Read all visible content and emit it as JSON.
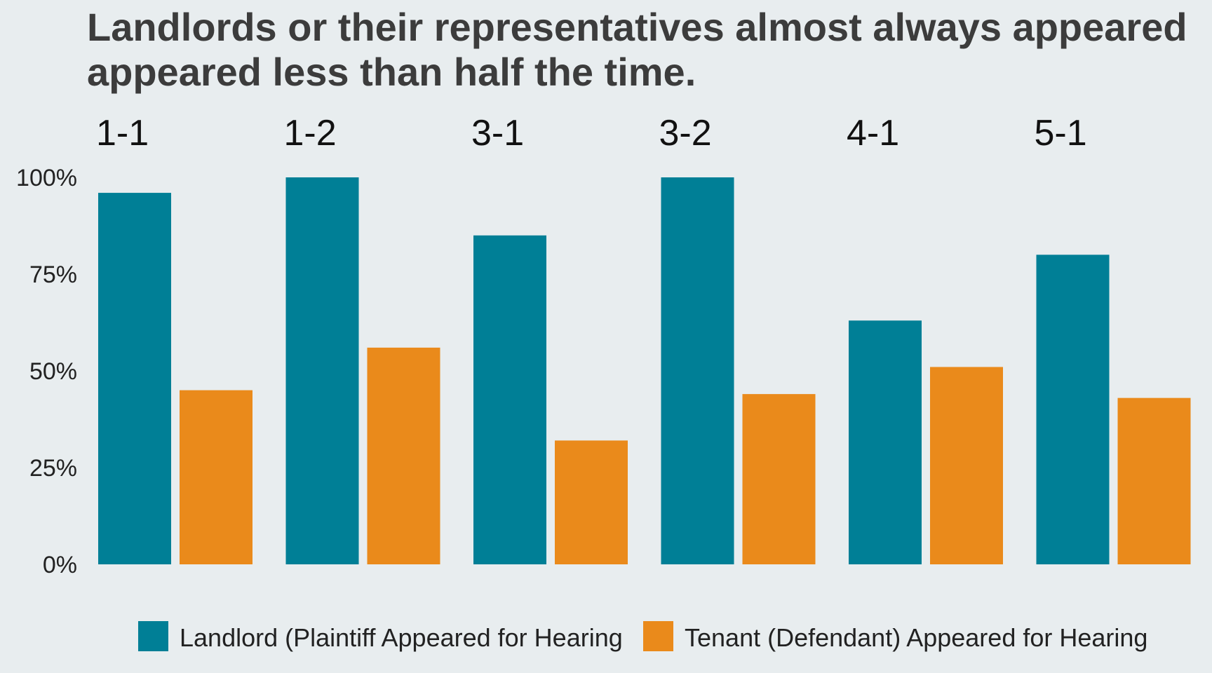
{
  "chart_data": {
    "type": "bar",
    "title_lines": [
      "Landlords or their representatives almost always appeared",
      "appeared less than half the time."
    ],
    "categories": [
      "1-1",
      "1-2",
      "3-1",
      "3-2",
      "4-1",
      "5-1"
    ],
    "series": [
      {
        "name": "Landlord (Plaintiff Appeared for Hearing",
        "color": "#007f96",
        "values": [
          96,
          100,
          85,
          100,
          63,
          80
        ]
      },
      {
        "name": "Tenant (Defendant) Appeared for Hearing",
        "color": "#ea8a1b",
        "values": [
          45,
          56,
          32,
          44,
          51,
          43
        ]
      }
    ],
    "yticks": [
      "0%",
      "25%",
      "50%",
      "75%",
      "100%"
    ],
    "ytick_values": [
      0,
      25,
      50,
      75,
      100
    ],
    "ylim": [
      0,
      100
    ],
    "xlabel": "",
    "ylabel": "",
    "grid": false,
    "legend_position": "bottom"
  }
}
